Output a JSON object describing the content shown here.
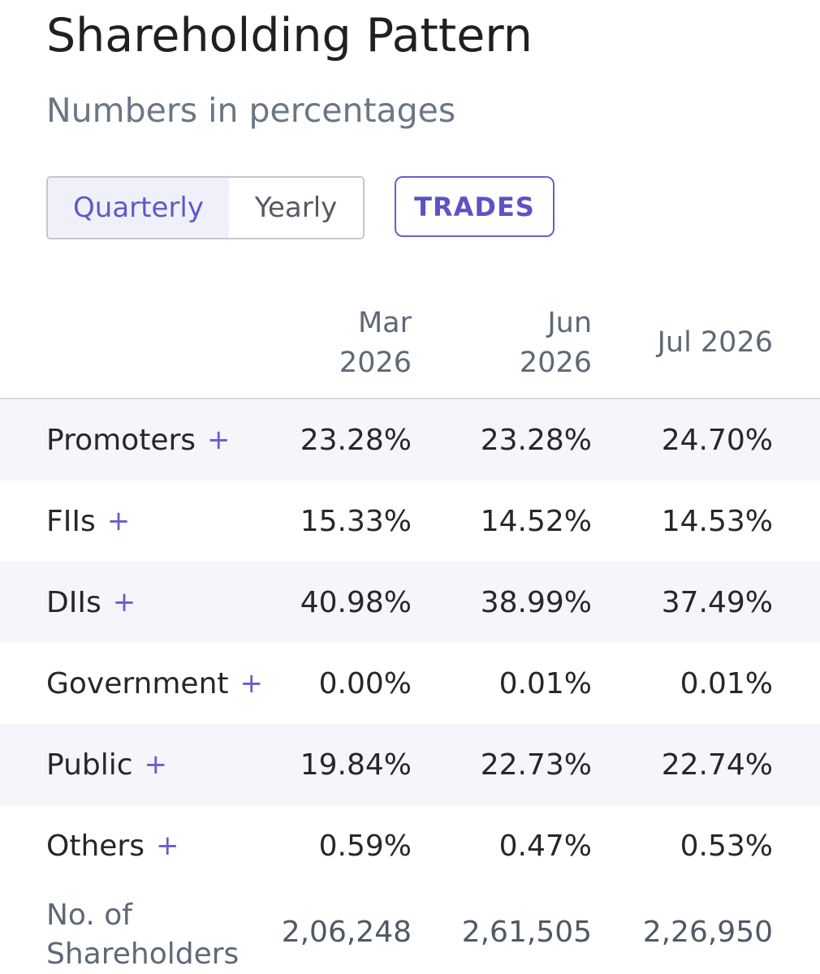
{
  "header": {
    "title": "Shareholding Pattern",
    "subtitle": "Numbers in percentages"
  },
  "toggle": {
    "quarterly": "Quarterly",
    "yearly": "Yearly",
    "selected": "Quarterly"
  },
  "trades_label": "TRADES",
  "table": {
    "columns": [
      "Mar\n2026",
      "Jun\n2026",
      "Jul 2026"
    ],
    "rows": [
      {
        "label": "Promoters",
        "expand": "+",
        "values": [
          "23.28%",
          "23.28%",
          "24.70%"
        ]
      },
      {
        "label": "FIIs",
        "expand": "+",
        "values": [
          "15.33%",
          "14.52%",
          "14.53%"
        ]
      },
      {
        "label": "DIIs",
        "expand": "+",
        "values": [
          "40.98%",
          "38.99%",
          "37.49%"
        ]
      },
      {
        "label": "Government",
        "expand": "+",
        "values": [
          "0.00%",
          "0.01%",
          "0.01%"
        ]
      },
      {
        "label": "Public",
        "expand": "+",
        "values": [
          "19.84%",
          "22.73%",
          "22.74%"
        ]
      },
      {
        "label": "Others",
        "expand": "+",
        "values": [
          "0.59%",
          "0.47%",
          "0.53%"
        ]
      }
    ],
    "shareholders": {
      "label": "No. of\nShareholders",
      "values": [
        "2,06,248",
        "2,61,505",
        "2,26,950"
      ]
    }
  },
  "colors": {
    "accent": "#6158c8",
    "row_shade": "#f5f5fa",
    "muted_text": "#6a7785"
  }
}
